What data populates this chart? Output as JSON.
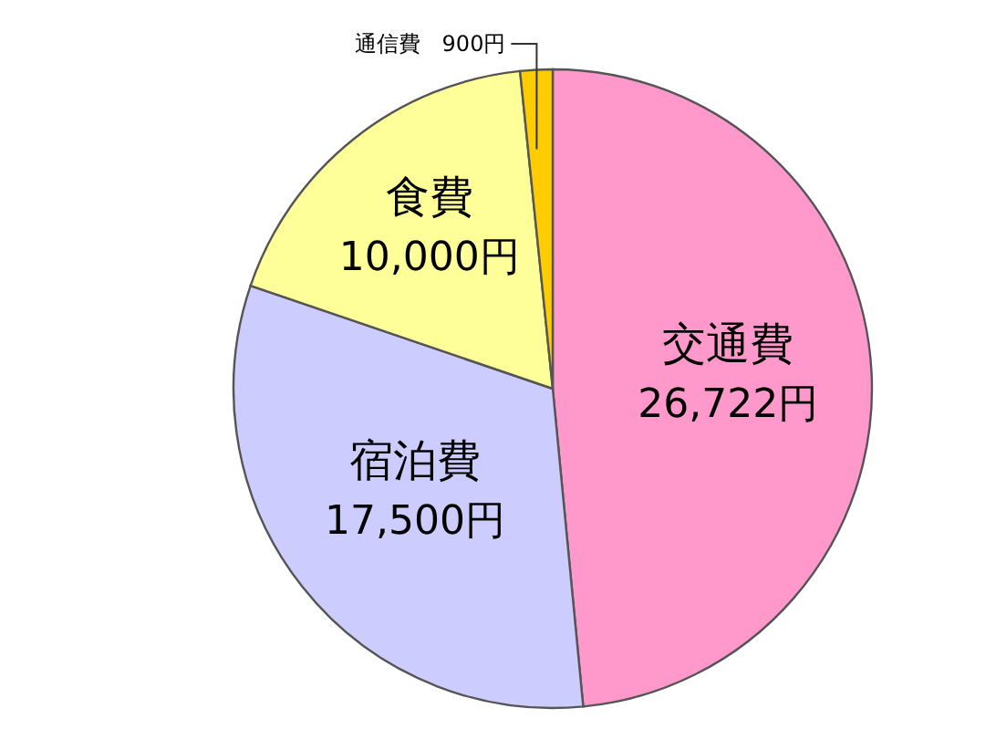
{
  "chart_data": {
    "type": "pie",
    "categories": [
      "交通費",
      "宿泊費",
      "食費",
      "通信費"
    ],
    "values": [
      26722,
      17500,
      10000,
      900
    ],
    "value_labels": [
      "26,722円",
      "17,500円",
      "10,000円",
      "900円"
    ],
    "colors": [
      "#ff99cc",
      "#ccccff",
      "#ffff99",
      "#ffcc00"
    ]
  }
}
